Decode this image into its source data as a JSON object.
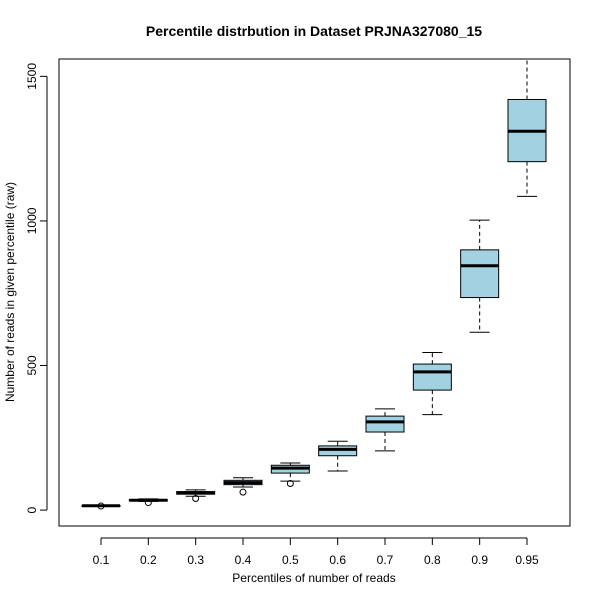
{
  "chart_data": {
    "type": "boxplot",
    "title": "Percentile distrbution in Dataset PRJNA327080_15",
    "xlabel": "Percentiles of number of reads",
    "ylabel": "Number of reads in given percentile (raw)",
    "ylim": [
      -55,
      1560
    ],
    "yticks": [
      0,
      500,
      1000,
      1500
    ],
    "categories": [
      "0.1",
      "0.2",
      "0.3",
      "0.4",
      "0.5",
      "0.6",
      "0.7",
      "0.8",
      "0.9",
      "0.95"
    ],
    "boxes": [
      {
        "whisker_low": 13,
        "q1": 14,
        "median": 15,
        "q3": 16,
        "whisker_high": 17,
        "outliers": [
          14
        ]
      },
      {
        "whisker_low": 30,
        "q1": 32,
        "median": 34,
        "q3": 36,
        "whisker_high": 39,
        "outliers": [
          26
        ]
      },
      {
        "whisker_low": 48,
        "q1": 55,
        "median": 60,
        "q3": 64,
        "whisker_high": 70,
        "outliers": [
          40
        ]
      },
      {
        "whisker_low": 80,
        "q1": 88,
        "median": 95,
        "q3": 103,
        "whisker_high": 112,
        "outliers": [
          62
        ]
      },
      {
        "whisker_low": 100,
        "q1": 128,
        "median": 145,
        "q3": 155,
        "whisker_high": 163,
        "outliers": [
          92
        ]
      },
      {
        "whisker_low": 135,
        "q1": 188,
        "median": 210,
        "q3": 222,
        "whisker_high": 238,
        "outliers": []
      },
      {
        "whisker_low": 205,
        "q1": 270,
        "median": 305,
        "q3": 325,
        "whisker_high": 350,
        "outliers": []
      },
      {
        "whisker_low": 330,
        "q1": 415,
        "median": 478,
        "q3": 505,
        "whisker_high": 545,
        "outliers": []
      },
      {
        "whisker_low": 615,
        "q1": 735,
        "median": 845,
        "q3": 900,
        "whisker_high": 1003,
        "outliers": []
      },
      {
        "whisker_low": 1085,
        "q1": 1205,
        "median": 1310,
        "q3": 1420,
        "whisker_high": 1560,
        "outliers": []
      }
    ],
    "box_fill": "#a2d2e2",
    "grid": false,
    "legend": "none"
  }
}
